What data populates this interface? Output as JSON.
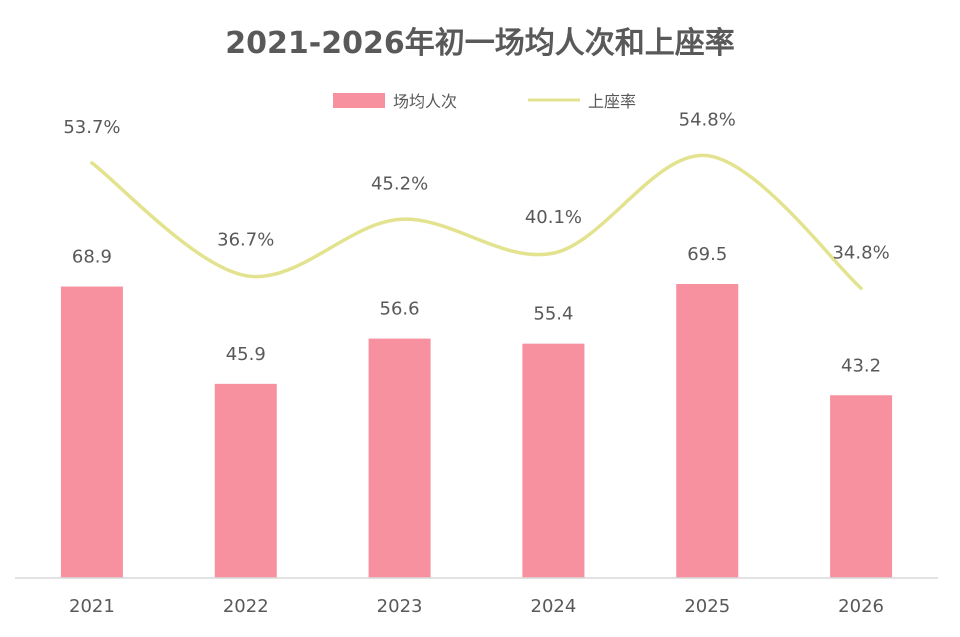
{
  "chart_data": {
    "type": "bar",
    "title": "2021-2026年初一场均人次和上座率",
    "categories": [
      "2021",
      "2022",
      "2023",
      "2024",
      "2025",
      "2026"
    ],
    "series": [
      {
        "name": "场均人次",
        "type": "bar",
        "color": "#f7909f",
        "values": [
          68.9,
          45.9,
          56.6,
          55.4,
          69.5,
          43.2
        ],
        "labels": [
          "68.9",
          "45.9",
          "56.6",
          "55.4",
          "69.5",
          "43.2"
        ]
      },
      {
        "name": "上座率",
        "type": "line",
        "smooth": true,
        "color": "#e3e38f",
        "values": [
          53.7,
          36.7,
          45.2,
          40.1,
          54.8,
          34.8
        ],
        "labels": [
          "53.7%",
          "36.7%",
          "45.2%",
          "40.1%",
          "54.8%",
          "34.8%"
        ]
      }
    ],
    "legend_position": "top-center",
    "grid": false
  }
}
